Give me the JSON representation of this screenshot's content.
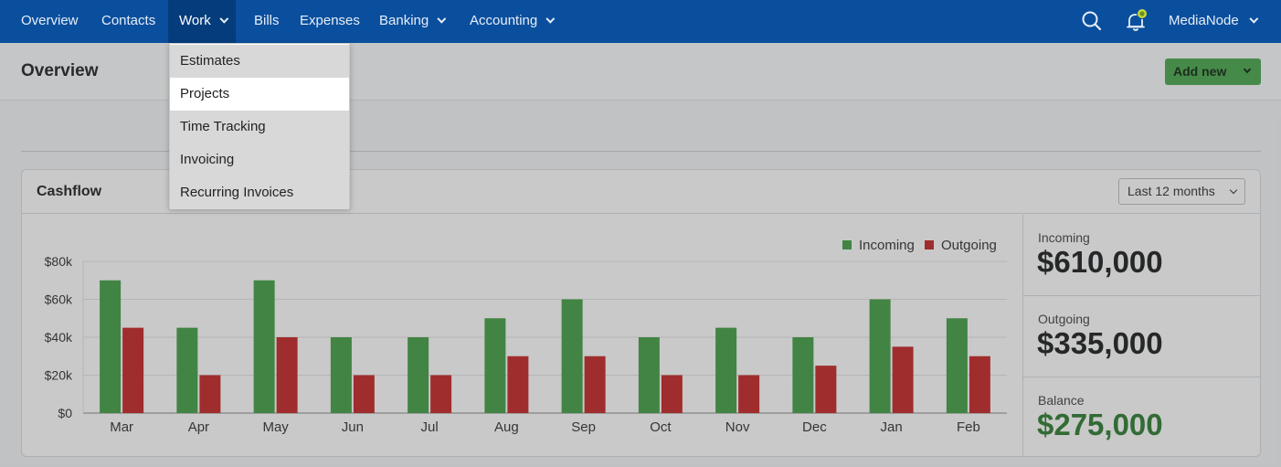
{
  "nav": {
    "items": [
      {
        "label": "Overview",
        "active": true,
        "has_menu": false
      },
      {
        "label": "Contacts",
        "active": false,
        "has_menu": false
      },
      {
        "label": "Work",
        "active": true,
        "has_menu": true
      },
      {
        "label": "Bills",
        "active": false,
        "has_menu": false
      },
      {
        "label": "Expenses",
        "active": false,
        "has_menu": false
      },
      {
        "label": "Banking",
        "active": false,
        "has_menu": true
      },
      {
        "label": "Accounting",
        "active": false,
        "has_menu": true
      }
    ],
    "org_name": "MediaNode",
    "icons": [
      "search-icon",
      "bell-icon"
    ]
  },
  "work_menu": {
    "items": [
      "Estimates",
      "Projects",
      "Time Tracking",
      "Invoicing",
      "Recurring Invoices"
    ],
    "highlighted": "Projects"
  },
  "header": {
    "title": "Overview",
    "add_new_label": "Add new"
  },
  "cashflow": {
    "title": "Cashflow",
    "period": "Last 12 months",
    "stats": {
      "incoming_label": "Incoming",
      "incoming_value": "$610,000",
      "outgoing_label": "Outgoing",
      "outgoing_value": "$335,000",
      "balance_label": "Balance",
      "balance_value": "$275,000"
    }
  },
  "colors": {
    "nav_bg": "#0a4f9e",
    "incoming": "#43a047",
    "outgoing": "#c62828",
    "balance": "#2e7d32",
    "add_button": "#4aa84e"
  },
  "chart_data": {
    "type": "bar",
    "categories": [
      "Mar",
      "Apr",
      "May",
      "Jun",
      "Jul",
      "Aug",
      "Sep",
      "Oct",
      "Nov",
      "Dec",
      "Jan",
      "Feb"
    ],
    "series": [
      {
        "name": "Incoming",
        "values": [
          70000,
          45000,
          70000,
          40000,
          40000,
          50000,
          60000,
          40000,
          45000,
          40000,
          60000,
          50000
        ]
      },
      {
        "name": "Outgoing",
        "values": [
          45000,
          20000,
          40000,
          20000,
          20000,
          30000,
          30000,
          20000,
          20000,
          25000,
          35000,
          30000
        ]
      }
    ],
    "yticks": [
      "$0",
      "$20k",
      "$40k",
      "$60k",
      "$80k"
    ],
    "ylim": [
      0,
      80000
    ],
    "grid": true,
    "legend": "top-right"
  }
}
